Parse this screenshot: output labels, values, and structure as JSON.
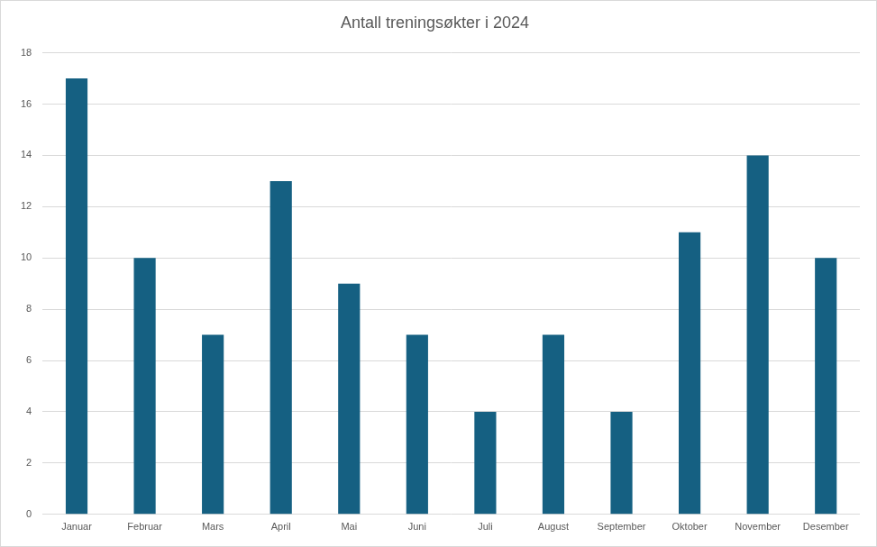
{
  "chart_data": {
    "type": "bar",
    "title": "Antall treningsøkter i 2024",
    "categories": [
      "Januar",
      "Februar",
      "Mars",
      "April",
      "Mai",
      "Juni",
      "Juli",
      "August",
      "September",
      "Oktober",
      "November",
      "Desember"
    ],
    "values": [
      17,
      10,
      7,
      13,
      9,
      7,
      4,
      7,
      4,
      11,
      14,
      10
    ],
    "color": "#156082",
    "ylim": [
      0,
      18
    ],
    "yticks": [
      0,
      2,
      4,
      6,
      8,
      10,
      12,
      14,
      16,
      18
    ],
    "grid": true
  }
}
